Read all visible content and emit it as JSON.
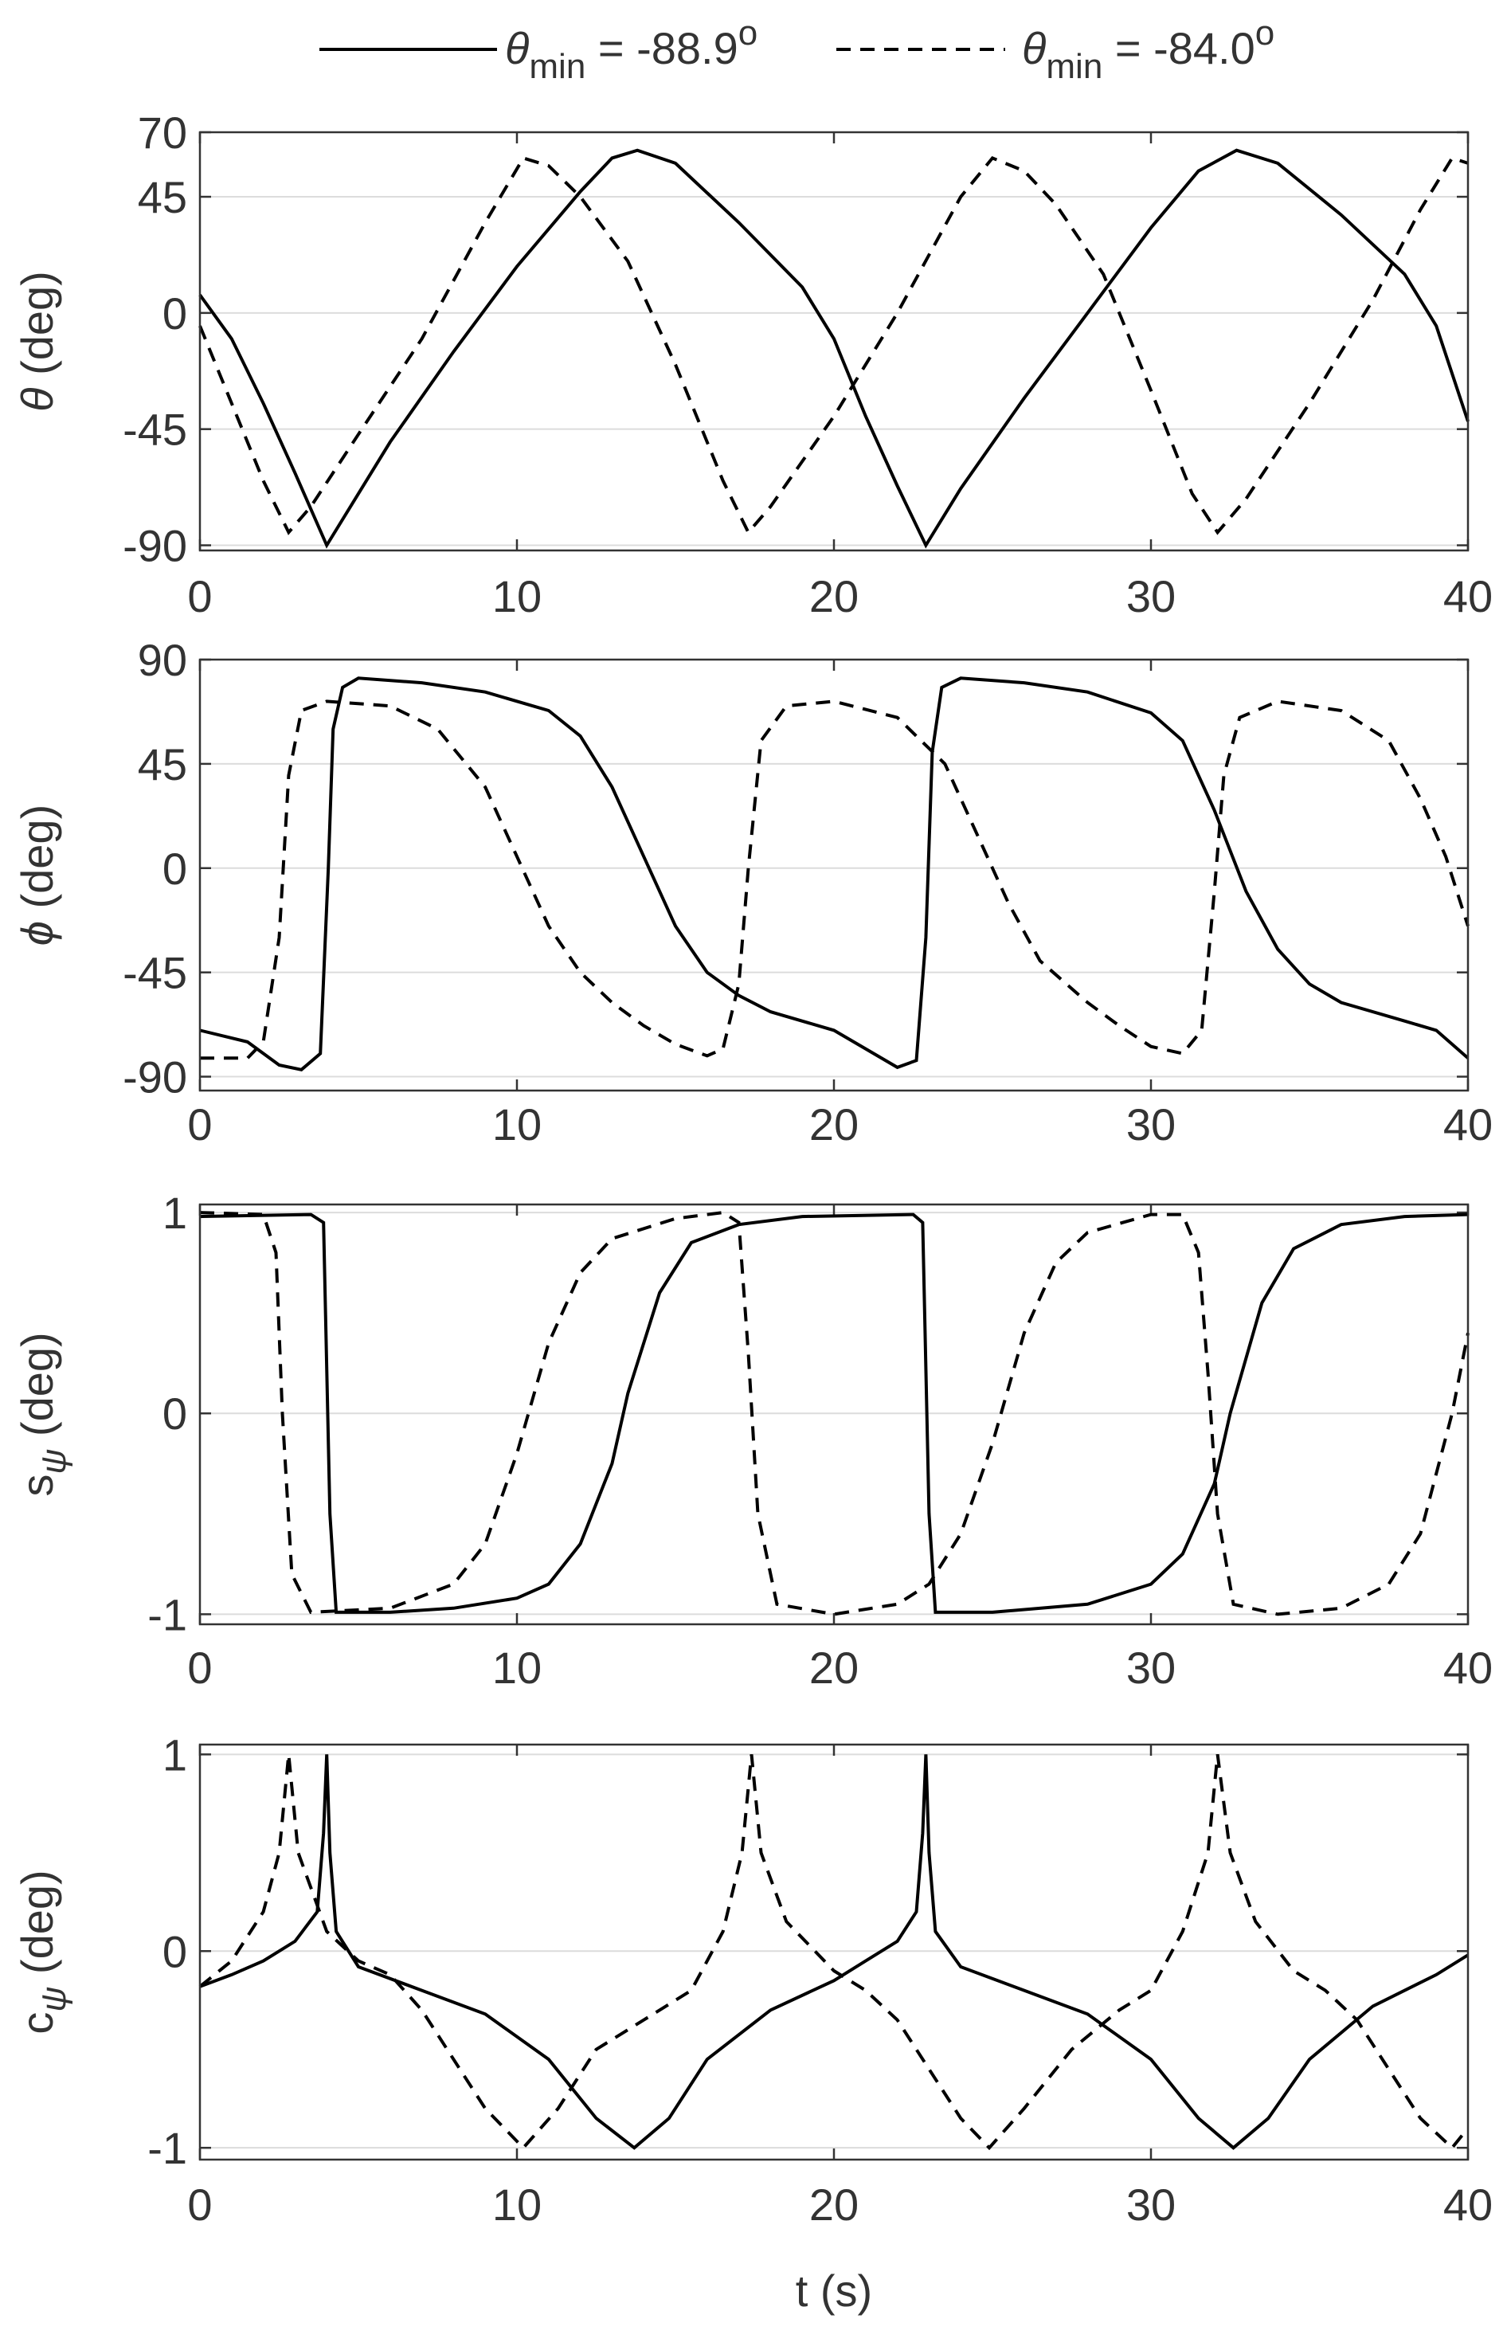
{
  "legend": [
    {
      "symbol": "θ",
      "subscript": "min",
      "text": " = -88.9",
      "superscript": "o"
    },
    {
      "symbol": "θ",
      "subscript": "min",
      "text": " = -84.0",
      "superscript": "o"
    }
  ],
  "chart_data": [
    {
      "type": "line",
      "ylabel": {
        "symbol": "θ",
        "suffix": " (deg)"
      },
      "xlim": [
        0,
        40
      ],
      "xticks": [
        0,
        10,
        20,
        30,
        40
      ],
      "ylim": [
        -92,
        70
      ],
      "yticks": [
        -90,
        -45,
        0,
        45,
        70
      ],
      "grid": true,
      "series": [
        {
          "color": "#000000",
          "dash": "solid",
          "x": [
            0,
            1,
            2,
            3,
            4,
            5,
            6,
            8,
            10,
            12,
            13,
            13.8,
            15,
            17,
            19,
            20,
            21,
            22,
            22.9,
            24,
            26,
            28,
            30,
            31.5,
            32.7,
            34,
            36,
            38,
            39,
            40
          ],
          "values": [
            7,
            -10,
            -35,
            -62,
            -90,
            -70,
            -50,
            -15,
            18,
            47,
            60,
            63,
            58,
            35,
            10,
            -10,
            -40,
            -67,
            -90,
            -68,
            -33,
            0,
            33,
            55,
            63,
            58,
            38,
            15,
            -5,
            -42
          ]
        },
        {
          "color": "#000000",
          "dash": "dashed",
          "x": [
            0,
            1,
            2,
            2.8,
            3.5,
            5,
            7,
            9,
            10.2,
            11,
            12,
            13.5,
            15,
            16.5,
            17.3,
            18,
            20,
            22,
            24,
            25,
            26,
            27,
            28.5,
            30,
            31.3,
            32.1,
            33,
            35,
            37,
            38.5,
            39.5,
            40
          ],
          "values": [
            -5,
            -35,
            -65,
            -85,
            -75,
            -47,
            -10,
            35,
            60,
            57,
            45,
            20,
            -20,
            -65,
            -85,
            -75,
            -40,
            0,
            45,
            60,
            55,
            42,
            15,
            -30,
            -70,
            -85,
            -72,
            -35,
            5,
            40,
            60,
            58
          ]
        }
      ]
    },
    {
      "type": "line",
      "ylabel": {
        "symbol": "ϕ",
        "suffix": " (deg)"
      },
      "xlim": [
        0,
        40
      ],
      "xticks": [
        0,
        10,
        20,
        30,
        40
      ],
      "ylim": [
        -96,
        90
      ],
      "yticks": [
        -90,
        -45,
        0,
        45,
        90
      ],
      "grid": true,
      "series": [
        {
          "color": "#000000",
          "dash": "solid",
          "x": [
            0,
            1.5,
            2.5,
            3.2,
            3.8,
            4.05,
            4.2,
            4.5,
            5,
            7,
            9,
            11,
            12,
            13,
            14,
            15,
            16,
            17,
            18,
            20,
            21,
            22,
            22.6,
            22.9,
            23.1,
            23.4,
            24,
            26,
            28,
            30,
            31,
            32,
            33,
            34,
            35,
            36,
            38,
            39,
            40
          ],
          "values": [
            -70,
            -75,
            -85,
            -87,
            -80,
            0,
            60,
            78,
            82,
            80,
            76,
            68,
            57,
            35,
            5,
            -25,
            -45,
            -55,
            -62,
            -70,
            -78,
            -86,
            -83,
            -30,
            50,
            78,
            82,
            80,
            76,
            67,
            55,
            25,
            -10,
            -35,
            -50,
            -58,
            -66,
            -70,
            -82
          ]
        },
        {
          "color": "#000000",
          "dash": "dashed",
          "x": [
            0,
            1.5,
            2,
            2.5,
            2.8,
            3.2,
            4,
            6,
            7.5,
            9,
            10,
            11,
            12,
            13,
            14,
            15,
            16,
            16.5,
            17,
            17.3,
            17.7,
            18.5,
            20,
            22,
            23.5,
            24.5,
            25.5,
            26.5,
            28,
            29,
            30,
            31,
            31.6,
            32,
            32.3,
            32.8,
            34,
            36,
            37.5,
            38.5,
            39.3,
            40
          ],
          "values": [
            -82,
            -82,
            -75,
            -30,
            40,
            68,
            72,
            70,
            60,
            35,
            5,
            -25,
            -45,
            -58,
            -68,
            -76,
            -81,
            -78,
            -50,
            0,
            55,
            70,
            72,
            65,
            45,
            15,
            -15,
            -40,
            -58,
            -68,
            -77,
            -80,
            -70,
            -10,
            40,
            65,
            72,
            68,
            55,
            30,
            5,
            -25
          ]
        }
      ]
    },
    {
      "type": "line",
      "ylabel": {
        "symbol": "s",
        "subscript": "ψ",
        "suffix": " (deg)"
      },
      "xlim": [
        0,
        40
      ],
      "xticks": [
        0,
        10,
        20,
        30,
        40
      ],
      "ylim": [
        -1.05,
        1.04
      ],
      "yticks": [
        -1,
        0,
        1
      ],
      "grid": true,
      "series": [
        {
          "color": "#000000",
          "dash": "solid",
          "x": [
            0,
            3.5,
            3.9,
            4.1,
            4.3,
            6,
            8,
            10,
            11,
            12,
            13,
            13.5,
            14.5,
            15.5,
            17,
            19,
            22.5,
            22.8,
            23,
            23.2,
            25,
            28,
            30,
            31,
            32,
            32.5,
            33.5,
            34.5,
            36,
            38,
            40
          ],
          "values": [
            0.98,
            0.99,
            0.95,
            -0.5,
            -0.99,
            -0.99,
            -0.97,
            -0.92,
            -0.85,
            -0.65,
            -0.25,
            0.1,
            0.6,
            0.85,
            0.94,
            0.98,
            0.99,
            0.95,
            -0.5,
            -0.99,
            -0.99,
            -0.95,
            -0.85,
            -0.7,
            -0.35,
            0,
            0.55,
            0.82,
            0.94,
            0.98,
            0.99
          ]
        },
        {
          "color": "#000000",
          "dash": "dashed",
          "x": [
            0,
            2,
            2.4,
            2.6,
            2.9,
            3.5,
            6,
            8,
            9,
            10,
            11,
            12,
            13,
            15,
            16.5,
            17,
            17.3,
            17.6,
            18.2,
            20,
            22,
            23,
            24,
            25,
            26,
            27,
            28,
            30,
            31,
            31.5,
            31.8,
            32.1,
            32.6,
            34,
            36,
            37.5,
            38.5,
            39.5,
            40
          ],
          "values": [
            1,
            0.99,
            0.8,
            0,
            -0.8,
            -0.99,
            -0.97,
            -0.85,
            -0.65,
            -0.2,
            0.35,
            0.7,
            0.87,
            0.97,
            1,
            0.95,
            0.3,
            -0.5,
            -0.95,
            -1,
            -0.95,
            -0.85,
            -0.6,
            -0.15,
            0.4,
            0.75,
            0.9,
            0.99,
            0.99,
            0.8,
            0.2,
            -0.5,
            -0.95,
            -1,
            -0.97,
            -0.85,
            -0.6,
            0,
            0.4
          ]
        }
      ]
    },
    {
      "type": "line",
      "ylabel": {
        "symbol": "c",
        "subscript": "ψ",
        "suffix": " (deg)"
      },
      "xlabel": "t (s)",
      "xlim": [
        0,
        40
      ],
      "xticks": [
        0,
        10,
        20,
        30,
        40
      ],
      "ylim": [
        -1.06,
        1.05
      ],
      "yticks": [
        -1,
        0,
        1
      ],
      "grid": true,
      "series": [
        {
          "color": "#000000",
          "dash": "solid",
          "x": [
            0,
            1,
            2,
            3,
            3.7,
            3.9,
            4,
            4.1,
            4.3,
            5,
            7,
            9,
            11,
            12.5,
            13.7,
            14.8,
            16,
            18,
            20,
            21,
            22,
            22.6,
            22.8,
            22.9,
            23,
            23.2,
            24,
            26,
            28,
            30,
            31.5,
            32.6,
            33.7,
            35,
            37,
            39,
            40
          ],
          "values": [
            -0.18,
            -0.12,
            -0.05,
            0.05,
            0.2,
            0.6,
            1,
            0.5,
            0.1,
            -0.08,
            -0.2,
            -0.32,
            -0.55,
            -0.85,
            -1,
            -0.85,
            -0.55,
            -0.3,
            -0.15,
            -0.05,
            0.05,
            0.2,
            0.6,
            1,
            0.5,
            0.1,
            -0.08,
            -0.2,
            -0.32,
            -0.55,
            -0.85,
            -1,
            -0.85,
            -0.55,
            -0.28,
            -0.12,
            -0.02
          ]
        },
        {
          "color": "#000000",
          "dash": "dashed",
          "x": [
            0,
            1,
            2,
            2.5,
            2.8,
            3.1,
            4,
            5,
            6,
            7,
            8,
            9,
            10.2,
            11.3,
            12.5,
            14,
            15.5,
            16.5,
            17.1,
            17.4,
            17.7,
            18.5,
            20,
            21,
            22,
            23,
            24,
            24.9,
            26,
            27.5,
            29,
            30,
            31,
            31.8,
            32.1,
            32.5,
            33.3,
            34.5,
            35.5,
            36.5,
            37.5,
            38.5,
            39.5,
            40
          ],
          "values": [
            -0.18,
            -0.05,
            0.2,
            0.5,
            1,
            0.5,
            0.1,
            -0.05,
            -0.12,
            -0.3,
            -0.55,
            -0.8,
            -1,
            -0.8,
            -0.5,
            -0.35,
            -0.2,
            0.1,
            0.5,
            1,
            0.5,
            0.15,
            -0.1,
            -0.2,
            -0.35,
            -0.6,
            -0.85,
            -1,
            -0.8,
            -0.5,
            -0.3,
            -0.2,
            0.1,
            0.5,
            1,
            0.5,
            0.15,
            -0.1,
            -0.2,
            -0.35,
            -0.6,
            -0.85,
            -1,
            -0.9
          ]
        }
      ]
    }
  ]
}
